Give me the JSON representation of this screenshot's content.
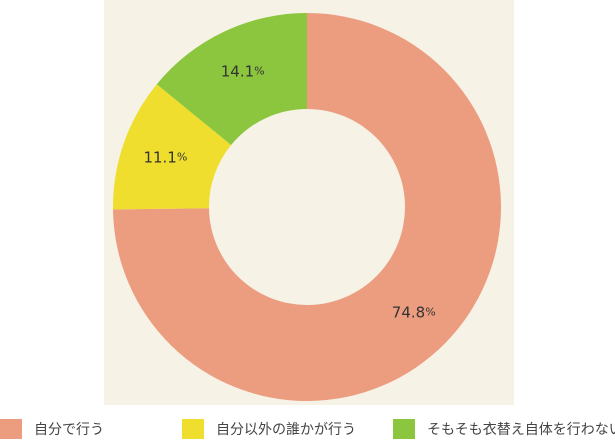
{
  "chart_data": {
    "type": "pie",
    "style": "donut",
    "slices": [
      {
        "label": "自分で行う",
        "value": 74.8,
        "display": "74.8",
        "unit": "%",
        "color": "#ec9d80"
      },
      {
        "label": "自分以外の誰かが行う",
        "value": 11.1,
        "display": "11.1",
        "unit": "%",
        "color": "#efde2e"
      },
      {
        "label": "そもそも衣替え自体を行わない",
        "value": 14.1,
        "display": "14.1",
        "unit": "%",
        "color": "#8cc63f"
      }
    ],
    "legend_position": "bottom"
  }
}
